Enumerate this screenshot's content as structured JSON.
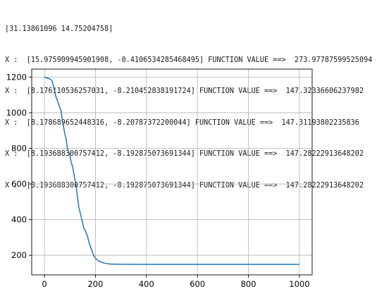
{
  "console": {
    "lines": [
      "[31.13861096 14.75204758]",
      "X :  [15.975909945901908, -0.4106534285468495] FUNCTION VALUE ==>  273.97787599525094",
      "X :  [8.176110536257031, -8.210452838191724] FUNCTION VALUE ==>  147.32336606237982",
      "X :  [8.178689652448316, -8.20787372200044] FUNCTION VALUE ==>  147.31193802235836",
      "X :  [8.193688300757412, -8.192875073691344] FUNCTION VALUE ==>  147.28222913648202",
      "X :  [8.193688300757412, -8.192875073691344] FUNCTION VALUE ==>  147.28222913648202"
    ]
  },
  "colors": {
    "line": "#1f77b4",
    "grid": "#b0b0b0",
    "axis": "#000000"
  },
  "chart_data": {
    "type": "line",
    "title": "",
    "xlabel": "",
    "ylabel": "",
    "grid": true,
    "xlim": [
      -50,
      1050
    ],
    "ylim": [
      90,
      1245
    ],
    "xticks": [
      0,
      200,
      400,
      600,
      800,
      1000
    ],
    "yticks": [
      200,
      400,
      600,
      800,
      1000,
      1200
    ],
    "x": [
      0,
      10,
      20,
      30,
      35,
      40,
      45,
      50,
      55,
      60,
      65,
      70,
      75,
      80,
      85,
      90,
      95,
      100,
      105,
      110,
      115,
      120,
      125,
      130,
      135,
      140,
      145,
      150,
      155,
      160,
      165,
      170,
      175,
      180,
      185,
      190,
      195,
      200,
      210,
      220,
      230,
      240,
      250,
      260,
      280,
      300,
      400,
      500,
      600,
      700,
      800,
      900,
      1000
    ],
    "series": [
      {
        "values": [
          1200,
          1195,
          1190,
          1180,
          1150,
          1120,
          1090,
          1070,
          1050,
          1030,
          1010,
          960,
          920,
          880,
          850,
          800,
          780,
          760,
          720,
          700,
          660,
          620,
          580,
          520,
          470,
          440,
          410,
          380,
          350,
          340,
          320,
          300,
          270,
          250,
          230,
          210,
          195,
          185,
          170,
          163,
          158,
          155,
          152,
          151,
          150,
          149.5,
          149,
          149,
          149,
          149,
          149,
          149,
          149
        ]
      }
    ]
  }
}
